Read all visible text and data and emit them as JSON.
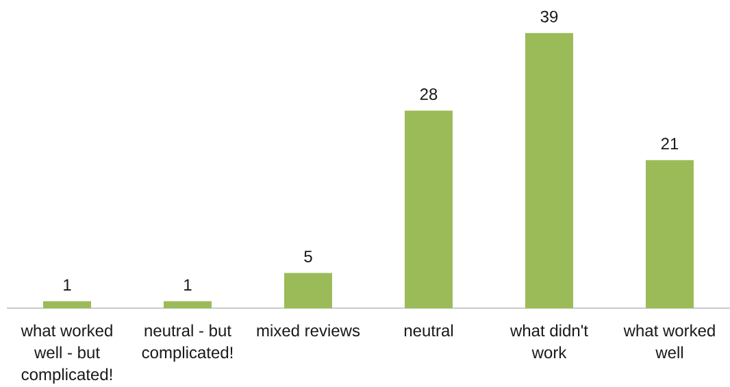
{
  "chart_data": {
    "type": "bar",
    "categories": [
      "what worked well - but complicated!",
      "neutral -  but complicated!",
      "mixed reviews",
      "neutral",
      "what didn't work",
      "what worked well"
    ],
    "values": [
      1,
      1,
      5,
      28,
      39,
      21
    ],
    "color": "#9bbb59",
    "data_labels": true
  }
}
